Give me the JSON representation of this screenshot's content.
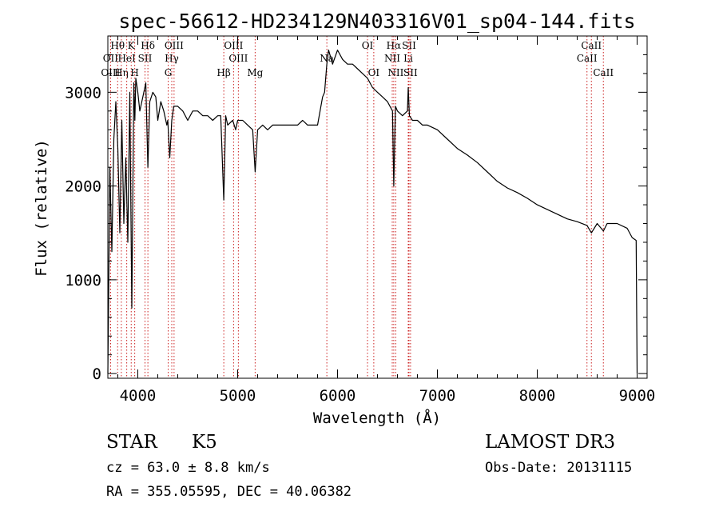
{
  "chart_data": {
    "type": "line",
    "title": "spec-56612-HD234129N403316V01_sp04-144.fits",
    "xlabel": "Wavelength (Å)",
    "ylabel": "Flux (relative)",
    "xlim": [
      3700,
      9100
    ],
    "ylim": [
      -50,
      3600
    ],
    "xticks": [
      4000,
      5000,
      6000,
      7000,
      8000,
      9000
    ],
    "yticks": [
      0,
      1000,
      2000,
      3000
    ],
    "grid": false,
    "series": [
      {
        "color": "#000000",
        "x": [
          3700,
          3720,
          3740,
          3760,
          3780,
          3800,
          3820,
          3840,
          3860,
          3880,
          3900,
          3920,
          3940,
          3960,
          3970,
          3980,
          4000,
          4020,
          4050,
          4080,
          4101,
          4120,
          4150,
          4180,
          4200,
          4230,
          4260,
          4290,
          4300,
          4320,
          4340,
          4360,
          4400,
          4450,
          4500,
          4550,
          4600,
          4650,
          4700,
          4750,
          4800,
          4830,
          4861,
          4880,
          4900,
          4950,
          4980,
          5000,
          5050,
          5100,
          5150,
          5175,
          5200,
          5250,
          5300,
          5350,
          5400,
          5450,
          5500,
          5550,
          5600,
          5650,
          5700,
          5750,
          5800,
          5850,
          5870,
          5893,
          5910,
          5950,
          6000,
          6050,
          6100,
          6150,
          6200,
          6250,
          6300,
          6350,
          6400,
          6450,
          6500,
          6550,
          6563,
          6580,
          6600,
          6650,
          6700,
          6708,
          6720,
          6750,
          6800,
          6850,
          6900,
          7000,
          7100,
          7200,
          7300,
          7400,
          7500,
          7600,
          7700,
          7800,
          7900,
          8000,
          8100,
          8200,
          8300,
          8400,
          8498,
          8542,
          8600,
          8662,
          8700,
          8800,
          8900,
          8950,
          8990,
          9000
        ],
        "y": [
          0,
          2200,
          1300,
          2500,
          2900,
          2400,
          1500,
          2700,
          1600,
          2300,
          1400,
          3000,
          700,
          3100,
          2700,
          3150,
          3000,
          2800,
          2950,
          3100,
          2200,
          2900,
          3000,
          2950,
          2700,
          2900,
          2800,
          2650,
          2700,
          2300,
          2700,
          2850,
          2850,
          2800,
          2700,
          2800,
          2800,
          2750,
          2750,
          2700,
          2750,
          2750,
          1850,
          2750,
          2650,
          2700,
          2600,
          2700,
          2700,
          2650,
          2600,
          2150,
          2600,
          2650,
          2600,
          2650,
          2650,
          2650,
          2650,
          2650,
          2650,
          2700,
          2650,
          2650,
          2650,
          2950,
          3000,
          3300,
          3450,
          3300,
          3450,
          3350,
          3300,
          3300,
          3250,
          3200,
          3150,
          3050,
          3000,
          2950,
          2900,
          2800,
          2000,
          2850,
          2800,
          2750,
          2800,
          3050,
          2750,
          2700,
          2700,
          2650,
          2650,
          2600,
          2500,
          2400,
          2330,
          2250,
          2150,
          2050,
          1980,
          1930,
          1870,
          1800,
          1750,
          1700,
          1650,
          1620,
          1580,
          1500,
          1600,
          1520,
          1600,
          1600,
          1550,
          1450,
          1420,
          0
        ]
      }
    ],
    "line_markers": {
      "color": "#cc2222",
      "lines": [
        {
          "label": "Hθ",
          "wavelength": 3798,
          "row": 1
        },
        {
          "label": "OII",
          "wavelength": 3727,
          "row": 2
        },
        {
          "label": "OIII",
          "wavelength": 3727,
          "row": 3
        },
        {
          "label": "Hη",
          "wavelength": 3835,
          "row": 3
        },
        {
          "label": "K",
          "wavelength": 3934,
          "row": 1
        },
        {
          "label": "HeI",
          "wavelength": 3889,
          "row": 2
        },
        {
          "label": "H",
          "wavelength": 3969,
          "row": 3
        },
        {
          "label": "SII",
          "wavelength": 4072,
          "row": 2
        },
        {
          "label": "Hδ",
          "wavelength": 4101,
          "row": 1
        },
        {
          "label": "OIII",
          "wavelength": 4363,
          "row": 1
        },
        {
          "label": "Hγ",
          "wavelength": 4340,
          "row": 2
        },
        {
          "label": "G",
          "wavelength": 4304,
          "row": 3
        },
        {
          "label": "Hβ",
          "wavelength": 4861,
          "row": 3
        },
        {
          "label": "OIII",
          "wavelength": 4959,
          "row": 1
        },
        {
          "label": "OIII",
          "wavelength": 5007,
          "row": 2
        },
        {
          "label": "Mg",
          "wavelength": 5175,
          "row": 3
        },
        {
          "label": "Na",
          "wavelength": 5893,
          "row": 2
        },
        {
          "label": "OI",
          "wavelength": 6300,
          "row": 1
        },
        {
          "label": "OI",
          "wavelength": 6363,
          "row": 3
        },
        {
          "label": "Hα",
          "wavelength": 6563,
          "row": 1
        },
        {
          "label": "NII",
          "wavelength": 6548,
          "row": 2
        },
        {
          "label": "NII",
          "wavelength": 6583,
          "row": 3
        },
        {
          "label": "SII",
          "wavelength": 6716,
          "row": 1
        },
        {
          "label": "Li",
          "wavelength": 6708,
          "row": 2
        },
        {
          "label": "SII",
          "wavelength": 6731,
          "row": 3
        },
        {
          "label": "CaII",
          "wavelength": 8542,
          "row": 1
        },
        {
          "label": "CaII",
          "wavelength": 8498,
          "row": 2
        },
        {
          "label": "CaII",
          "wavelength": 8662,
          "row": 3
        }
      ]
    }
  },
  "info": {
    "object_class": "STAR",
    "subclass": "K5",
    "survey": "LAMOST DR3",
    "redshift": "cz = 63.0 ± 8.8 km/s",
    "obs_date": "Obs-Date: 20131115",
    "coordinates": "RA = 355.05595, DEC =  40.06382"
  }
}
